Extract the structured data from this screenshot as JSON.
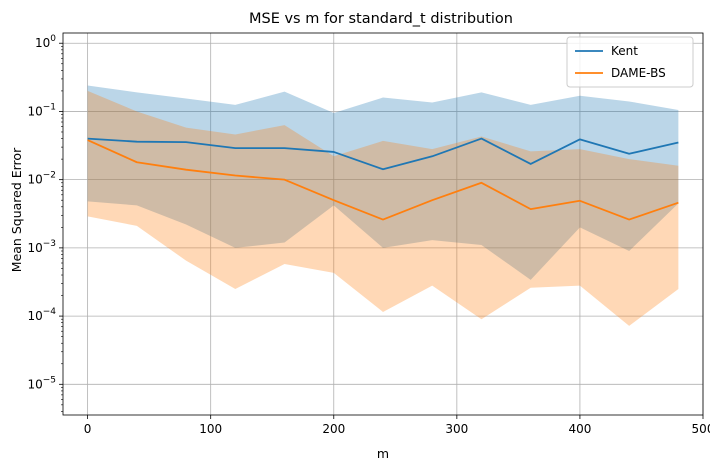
{
  "chart_data": {
    "type": "line",
    "title": "MSE vs m for standard_t distribution",
    "xlabel": "m",
    "ylabel": "Mean Squared Error",
    "yscale": "log",
    "xlim": [
      -20,
      500
    ],
    "ylim_exponent": [
      -5.45,
      0.15
    ],
    "grid": true,
    "legend_position": "top-right",
    "x": [
      0,
      40,
      80,
      120,
      160,
      200,
      240,
      280,
      320,
      360,
      400,
      440,
      480
    ],
    "x_ticks": [
      0,
      100,
      200,
      300,
      400,
      500
    ],
    "x_tick_labels": [
      "0",
      "100",
      "200",
      "300",
      "400",
      "500"
    ],
    "y_ticks_exp": [
      0,
      -1,
      -2,
      -3,
      -4,
      -5
    ],
    "y_tick_labels": [
      "10^0",
      "10^-1",
      "10^-2",
      "10^-3",
      "10^-4",
      "10^-5"
    ],
    "series": [
      {
        "name": "Kent",
        "color": "#1f77b4",
        "band_color": "#1f77b4",
        "band_opacity": 0.3,
        "values": [
          0.04,
          0.036,
          0.0355,
          0.029,
          0.029,
          0.0255,
          0.0142,
          0.022,
          0.04,
          0.017,
          0.039,
          0.024,
          0.035
        ],
        "upper": [
          0.24,
          0.19,
          0.155,
          0.125,
          0.195,
          0.095,
          0.16,
          0.135,
          0.19,
          0.125,
          0.17,
          0.14,
          0.105
        ],
        "lower": [
          0.0048,
          0.0042,
          0.0022,
          0.001,
          0.0012,
          0.0042,
          0.001,
          0.0013,
          0.0011,
          0.00034,
          0.002,
          0.0009,
          0.0045
        ]
      },
      {
        "name": "DAME-BS",
        "color": "#ff7f0e",
        "band_color": "#ff7f0e",
        "band_opacity": 0.3,
        "values": [
          0.038,
          0.018,
          0.014,
          0.0115,
          0.01,
          0.005,
          0.0026,
          0.005,
          0.009,
          0.0037,
          0.0049,
          0.0026,
          0.0046
        ],
        "upper": [
          0.2,
          0.1,
          0.058,
          0.046,
          0.063,
          0.022,
          0.037,
          0.028,
          0.043,
          0.026,
          0.028,
          0.02,
          0.016
        ],
        "lower": [
          0.0029,
          0.0021,
          0.00065,
          0.00025,
          0.00058,
          0.00043,
          0.000115,
          0.00028,
          9e-05,
          0.00026,
          0.00028,
          7.2e-05,
          0.00025
        ]
      }
    ]
  }
}
